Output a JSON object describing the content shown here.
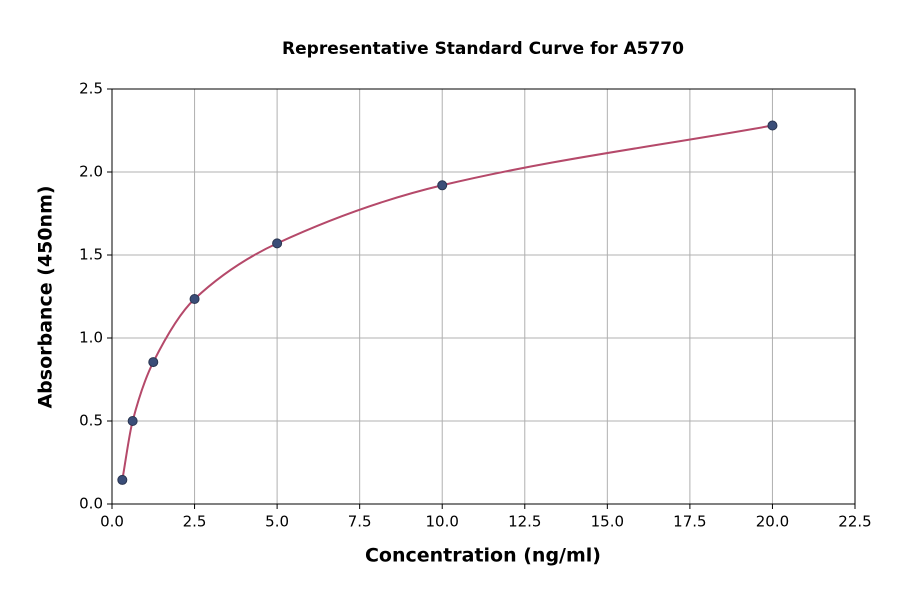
{
  "chart_data": {
    "type": "scatter",
    "title": "Representative Standard Curve for A5770",
    "x_label": "Concentration (ng/ml)",
    "y_label": "Absorbance (450nm)",
    "x": [
      0.3125,
      0.625,
      1.25,
      2.5,
      5,
      10,
      20
    ],
    "values": [
      0.145,
      0.5,
      0.855,
      1.235,
      1.57,
      1.92,
      2.28
    ],
    "color": "#3a4d78",
    "line_color": "#b5496a",
    "xlim": [
      0,
      22.5
    ],
    "xticks": [
      {
        "value": 0,
        "label": "0.0"
      },
      2.5,
      {
        "value": 5,
        "label": "5.0"
      },
      7.5,
      {
        "value": 10,
        "label": "10.0"
      },
      12.5,
      {
        "value": 15,
        "label": "15.0"
      },
      17.5,
      {
        "value": 20,
        "label": "20.0"
      },
      22.5
    ],
    "ylim": [
      0,
      2.5
    ],
    "yticks": [
      {
        "value": 0,
        "label": "0.0"
      },
      0.5,
      {
        "value": 1,
        "label": "1.0"
      },
      1.5,
      {
        "value": 2,
        "label": "2.0"
      },
      2.5
    ],
    "grid": true
  }
}
